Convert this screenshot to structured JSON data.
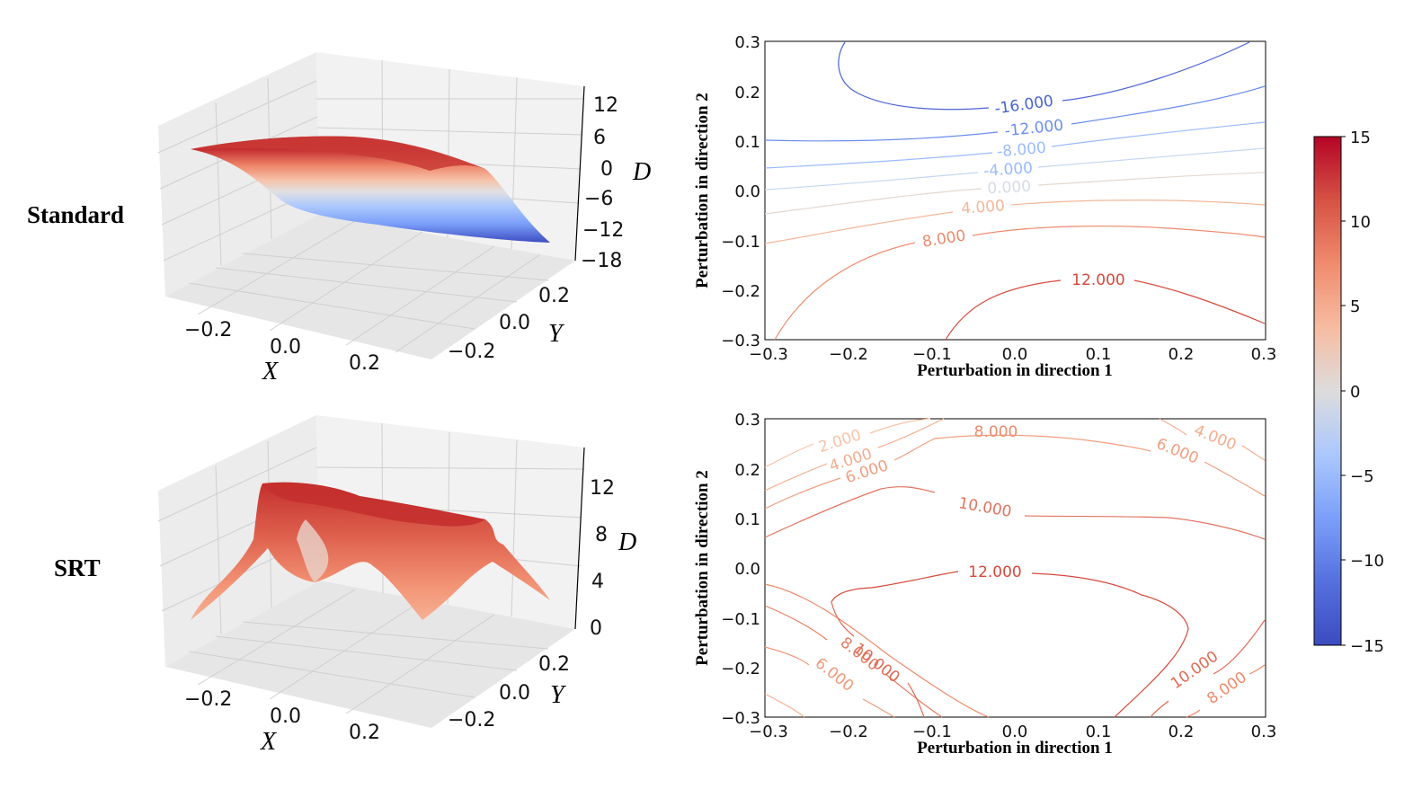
{
  "rows": [
    {
      "label": "Standard"
    },
    {
      "label": "SRT"
    }
  ],
  "colors": {
    "cmap_low": "#3b4cc0",
    "cmap_mid": "#dddddd",
    "cmap_high": "#b40426",
    "pane": "#f2f2f2",
    "grid": "#cfcfcf",
    "axis": "#000000"
  },
  "chart_data": [
    {
      "id": "standard-surface",
      "type": "surface3d",
      "title": "Standard",
      "xlabel": "X",
      "ylabel": "Y",
      "zlabel": "D",
      "xticks": [
        "−0.2",
        "0.0",
        "0.2"
      ],
      "yticks": [
        "−0.2",
        "0.0",
        "0.2"
      ],
      "zticks": [
        "12",
        "6",
        "0",
        "−6",
        "−12",
        "−18"
      ],
      "zlim": [
        -18,
        14
      ],
      "shape": "sigmoid step: D ≈ +13 at high Y, ≈ −17 at low Y"
    },
    {
      "id": "standard-contour",
      "type": "contour",
      "xlabel": "Perturbation in direction 1",
      "ylabel": "Perturbation in direction 2",
      "xlim": [
        -0.3,
        0.3
      ],
      "ylim": [
        -0.3,
        0.3
      ],
      "xticks": [
        "−0.3",
        "−0.2",
        "−0.1",
        "0.0",
        "0.1",
        "0.2",
        "0.3"
      ],
      "yticks": [
        "0.3",
        "0.2",
        "0.1",
        "0.0",
        "−0.1",
        "−0.2",
        "−0.3"
      ],
      "levels": [
        -16,
        -12,
        -8,
        -4,
        0,
        4,
        8,
        12
      ],
      "level_labels": [
        "-16.000",
        "-12.000",
        "-8.000",
        "-4.000",
        "0.000",
        "4.000",
        "8.000",
        "12.000"
      ]
    },
    {
      "id": "srt-surface",
      "type": "surface3d",
      "title": "SRT",
      "xlabel": "X",
      "ylabel": "Y",
      "zlabel": "D",
      "xticks": [
        "−0.2",
        "0.0",
        "0.2"
      ],
      "yticks": [
        "−0.2",
        "0.0",
        "0.2"
      ],
      "zticks": [
        "12",
        "8",
        "4",
        "0"
      ],
      "zlim": [
        0,
        14
      ],
      "shape": "broad plateau D ≈ 12–13 falling toward the edges"
    },
    {
      "id": "srt-contour",
      "type": "contour",
      "xlabel": "Perturbation in direction 1",
      "ylabel": "Perturbation in direction 2",
      "xlim": [
        -0.3,
        0.3
      ],
      "ylim": [
        -0.3,
        0.3
      ],
      "xticks": [
        "−0.3",
        "−0.2",
        "−0.1",
        "0.0",
        "0.1",
        "0.2",
        "0.3"
      ],
      "yticks": [
        "0.3",
        "0.2",
        "0.1",
        "0.0",
        "−0.1",
        "−0.2",
        "−0.3"
      ],
      "levels": [
        2,
        4,
        6,
        8,
        10,
        12
      ],
      "level_labels": [
        "2.000",
        "4.000",
        "6.000",
        "8.000",
        "10.000",
        "12.000",
        "4.000",
        "6.000",
        "8.000",
        "10.000",
        "6.000",
        "8.000",
        "10.000",
        "8.000",
        "10.000"
      ]
    },
    {
      "id": "colorbar",
      "type": "colorbar",
      "range": [
        -15,
        15
      ],
      "ticks": [
        "15",
        "10",
        "5",
        "0",
        "−5",
        "−10",
        "−15"
      ]
    }
  ]
}
